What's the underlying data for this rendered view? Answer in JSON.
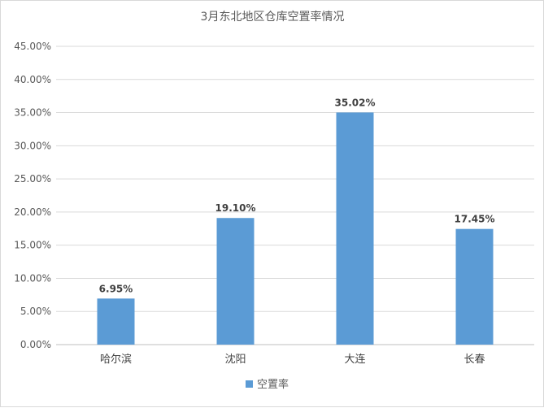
{
  "chart_data": {
    "type": "bar",
    "title": "3月东北地区仓库空置率情况",
    "categories": [
      "哈尔滨",
      "沈阳",
      "大连",
      "长春"
    ],
    "series": [
      {
        "name": "空置率",
        "values": [
          6.95,
          19.1,
          35.02,
          17.45
        ],
        "data_labels": [
          "6.95%",
          "19.10%",
          "35.02%",
          "17.45%"
        ]
      }
    ],
    "yticks": [
      "0.00%",
      "5.00%",
      "10.00%",
      "15.00%",
      "20.00%",
      "25.00%",
      "30.00%",
      "35.00%",
      "40.00%",
      "45.00%"
    ],
    "ylim": [
      0,
      45
    ],
    "ytick_step": 5,
    "grid": true,
    "legend_position": "bottom",
    "colors": {
      "bar": "#5b9bd5",
      "grid": "#d9d9d9",
      "axis": "#bfbfbf"
    }
  }
}
